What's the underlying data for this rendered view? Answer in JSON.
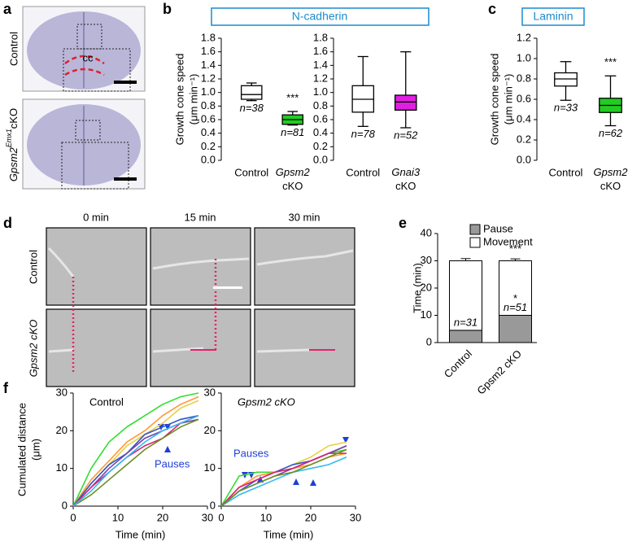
{
  "figure": {
    "panels": [
      "a",
      "b",
      "c",
      "d",
      "e",
      "f"
    ],
    "a_control": "Control",
    "a_ko": [
      "Gpsm2",
      "Emx1",
      "cKO"
    ],
    "a_cc": "cc",
    "b_title": "N-cadherin",
    "c_title": "Laminin",
    "d_times": [
      "0 min",
      "15 min",
      "30 min"
    ],
    "d_rows": [
      "Control",
      "Gpsm2 cKO"
    ]
  },
  "chart_data": [
    {
      "type": "box",
      "ylabel": [
        "Growth cone speed",
        "(μm min⁻¹)"
      ],
      "categories": [
        "Control",
        "Gpsm2 cKO"
      ],
      "colors": [
        "#ffffff",
        "#22cc22"
      ],
      "min": [
        0.88,
        0.52
      ],
      "q1": [
        0.9,
        0.53
      ],
      "median": [
        0.97,
        0.6
      ],
      "q3": [
        1.1,
        0.67
      ],
      "max": [
        1.14,
        0.72
      ],
      "n_labels": [
        "n=38",
        "n=81"
      ],
      "significance": [
        null,
        "***"
      ],
      "ylim": [
        0,
        1.8
      ],
      "yticks": [
        {
          "value": 0,
          "label": "0.0"
        },
        0.2,
        0.4,
        0.6,
        0.8,
        {
          "value": 1,
          "label": "1.0"
        },
        1.2,
        1.4,
        1.6,
        1.8
      ]
    },
    {
      "type": "box",
      "categories": [
        "Control",
        "Gnai3 cKO"
      ],
      "colors": [
        "#ffffff",
        "#e020e0"
      ],
      "min": [
        0.5,
        0.48
      ],
      "q1": [
        0.71,
        0.74
      ],
      "median": [
        0.9,
        0.86
      ],
      "q3": [
        1.1,
        0.96
      ],
      "max": [
        1.53,
        1.6
      ],
      "n_labels": [
        "n=78",
        "n=52"
      ],
      "significance": [
        null,
        null
      ],
      "ylim": [
        0,
        1.8
      ],
      "yticks": [
        {
          "value": 0,
          "label": "0.0"
        },
        0.2,
        0.4,
        0.6,
        0.8,
        {
          "value": 1,
          "label": "1.0"
        },
        1.2,
        1.4,
        1.6,
        1.8
      ]
    },
    {
      "type": "box",
      "ylabel": [
        "Growth cone speed",
        "(μm min⁻¹)"
      ],
      "categories": [
        "Control",
        "Gpsm2 cKO"
      ],
      "colors": [
        "#ffffff",
        "#22cc22"
      ],
      "min": [
        0.59,
        0.34
      ],
      "q1": [
        0.73,
        0.47
      ],
      "median": [
        0.8,
        0.54
      ],
      "q3": [
        0.86,
        0.61
      ],
      "max": [
        0.97,
        0.83
      ],
      "n_labels": [
        "n=33",
        "n=62"
      ],
      "significance": [
        null,
        "***"
      ],
      "ylim": [
        0,
        1.2
      ],
      "yticks": [
        {
          "value": 0,
          "label": "0.0"
        },
        0.2,
        0.4,
        0.6,
        0.8,
        {
          "value": 1,
          "label": "1.0"
        },
        1.2
      ]
    },
    {
      "type": "stacked_bar",
      "ylabel": "Time (min)",
      "categories": [
        "Control",
        "Gpsm2 cKO"
      ],
      "series": [
        {
          "name": "Pause",
          "color": "#999999",
          "values": [
            4.5,
            10
          ],
          "errors": [
            0.5,
            0.6
          ]
        },
        {
          "name": "Movement",
          "color": "#ffffff",
          "values": [
            25.5,
            20
          ],
          "errors": [
            0.8,
            0.7
          ]
        }
      ],
      "n_labels": [
        "n=31",
        "n=51"
      ],
      "significance": [
        null,
        "***"
      ],
      "pause_significance": [
        null,
        "*"
      ],
      "ylim": [
        0,
        40
      ],
      "yticks": [
        0,
        10,
        20,
        30,
        40
      ]
    },
    {
      "type": "line",
      "title": "Control",
      "annotation": "Pauses",
      "ylabel": [
        "Cumulated distance",
        "(μm)"
      ],
      "xlabel": "Time (min)",
      "x": [
        0,
        4,
        8,
        12,
        16,
        20,
        24,
        28
      ],
      "series": [
        {
          "color": "#33dd33",
          "values": [
            0,
            10,
            17,
            21,
            24,
            27,
            29,
            30
          ]
        },
        {
          "color": "#ff9933",
          "values": [
            0,
            7,
            12,
            17,
            20,
            24,
            27,
            29
          ]
        },
        {
          "color": "#e8d040",
          "values": [
            0,
            6,
            11,
            16,
            19,
            22,
            26,
            28
          ]
        },
        {
          "color": "#3355cc",
          "values": [
            0,
            6,
            11,
            14,
            19,
            21,
            23,
            24
          ]
        },
        {
          "color": "#7744aa",
          "values": [
            0,
            5,
            10,
            14,
            18,
            20,
            22,
            23
          ]
        },
        {
          "color": "#dd2277",
          "values": [
            0,
            5,
            9,
            13,
            16,
            18,
            22,
            24
          ]
        },
        {
          "color": "#6b8e23",
          "values": [
            0,
            3,
            7,
            11,
            15,
            18,
            21,
            23
          ]
        },
        {
          "color": "#33bbee",
          "values": [
            0,
            4,
            9,
            13,
            17,
            20,
            22,
            24
          ]
        }
      ],
      "xlim": [
        0,
        30
      ],
      "xticks": [
        0,
        10,
        20,
        30
      ],
      "ylim": [
        0,
        30
      ],
      "yticks": [
        0,
        10,
        20,
        30
      ]
    },
    {
      "type": "line",
      "title": "Gpsm2 cKO",
      "annotation": "Pauses",
      "xlabel": "Time (min)",
      "x": [
        0,
        4,
        8,
        12,
        16,
        20,
        24,
        28
      ],
      "series": [
        {
          "color": "#33dd33",
          "values": [
            0,
            8,
            9,
            9,
            10,
            12,
            14,
            15
          ]
        },
        {
          "color": "#ff9933",
          "values": [
            0,
            5,
            8,
            9,
            10,
            11,
            13,
            14
          ]
        },
        {
          "color": "#e8d040",
          "values": [
            0,
            5,
            7,
            9,
            11,
            13,
            16,
            17
          ]
        },
        {
          "color": "#3355cc",
          "values": [
            0,
            4,
            7,
            9,
            11,
            12,
            14,
            16
          ]
        },
        {
          "color": "#7744aa",
          "values": [
            0,
            4,
            6,
            8,
            10,
            12,
            14,
            16
          ]
        },
        {
          "color": "#dd2277",
          "values": [
            0,
            5,
            7,
            9,
            10,
            12,
            14,
            14
          ]
        },
        {
          "color": "#33bbee",
          "values": [
            0,
            3,
            5,
            7,
            9,
            10,
            11,
            13
          ]
        },
        {
          "color": "#6b8e23",
          "values": [
            0,
            4,
            6,
            8,
            9,
            11,
            13,
            15
          ]
        }
      ],
      "xlim": [
        0,
        30
      ],
      "xticks": [
        0,
        10,
        20,
        30
      ],
      "ylim": [
        0,
        30
      ],
      "yticks": [
        0,
        10,
        20,
        30
      ]
    }
  ]
}
